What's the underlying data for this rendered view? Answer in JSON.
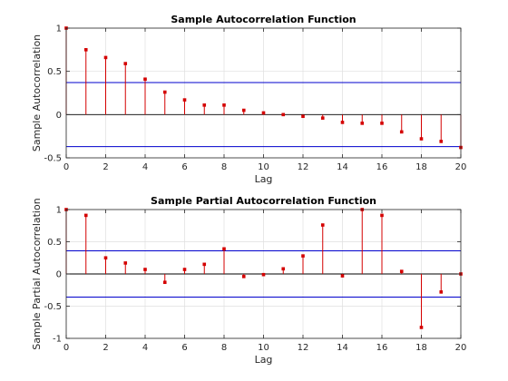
{
  "chart_data": [
    {
      "type": "stem",
      "title": "Sample Autocorrelation Function",
      "xlabel": "Lag",
      "ylabel": "Sample Autocorrelation",
      "xlim": [
        0,
        20
      ],
      "ylim": [
        -0.5,
        1
      ],
      "xticks": [
        "0",
        "2",
        "4",
        "6",
        "8",
        "10",
        "12",
        "14",
        "16",
        "18",
        "20"
      ],
      "yticks": [
        "-0.5",
        "0",
        "0.5",
        "1"
      ],
      "grid": true,
      "x": [
        0,
        1,
        2,
        3,
        4,
        5,
        6,
        7,
        8,
        9,
        10,
        11,
        12,
        13,
        14,
        15,
        16,
        17,
        18,
        19,
        20
      ],
      "values": [
        1.0,
        0.75,
        0.66,
        0.59,
        0.41,
        0.26,
        0.17,
        0.11,
        0.11,
        0.05,
        0.02,
        0.0,
        -0.02,
        -0.04,
        -0.09,
        -0.1,
        -0.1,
        -0.2,
        -0.28,
        -0.31,
        -0.38
      ],
      "bounds": [
        0.37,
        -0.37
      ],
      "colors": {
        "stem": "#d40000",
        "marker": "#d40000",
        "bounds": "#0000cc",
        "zero": "#000000"
      }
    },
    {
      "type": "stem",
      "title": "Sample Partial Autocorrelation Function",
      "xlabel": "Lag",
      "ylabel": "Sample Partial Autocorrelation",
      "xlim": [
        0,
        20
      ],
      "ylim": [
        -1,
        1
      ],
      "xticks": [
        "0",
        "2",
        "4",
        "6",
        "8",
        "10",
        "12",
        "14",
        "16",
        "18",
        "20"
      ],
      "yticks": [
        "-1",
        "-0.5",
        "0",
        "0.5",
        "1"
      ],
      "grid": true,
      "x": [
        0,
        1,
        2,
        3,
        4,
        5,
        6,
        7,
        8,
        9,
        10,
        11,
        12,
        13,
        14,
        15,
        16,
        17,
        18,
        19,
        20
      ],
      "values": [
        1.0,
        0.91,
        0.25,
        0.17,
        0.07,
        -0.13,
        0.07,
        0.15,
        0.39,
        -0.04,
        -0.01,
        0.08,
        0.28,
        0.76,
        -0.03,
        1.0,
        0.91,
        0.04,
        -0.83,
        -0.28,
        0.0
      ],
      "bounds": [
        0.36,
        -0.36
      ],
      "colors": {
        "stem": "#d40000",
        "marker": "#d40000",
        "bounds": "#0000cc",
        "zero": "#000000"
      }
    }
  ]
}
